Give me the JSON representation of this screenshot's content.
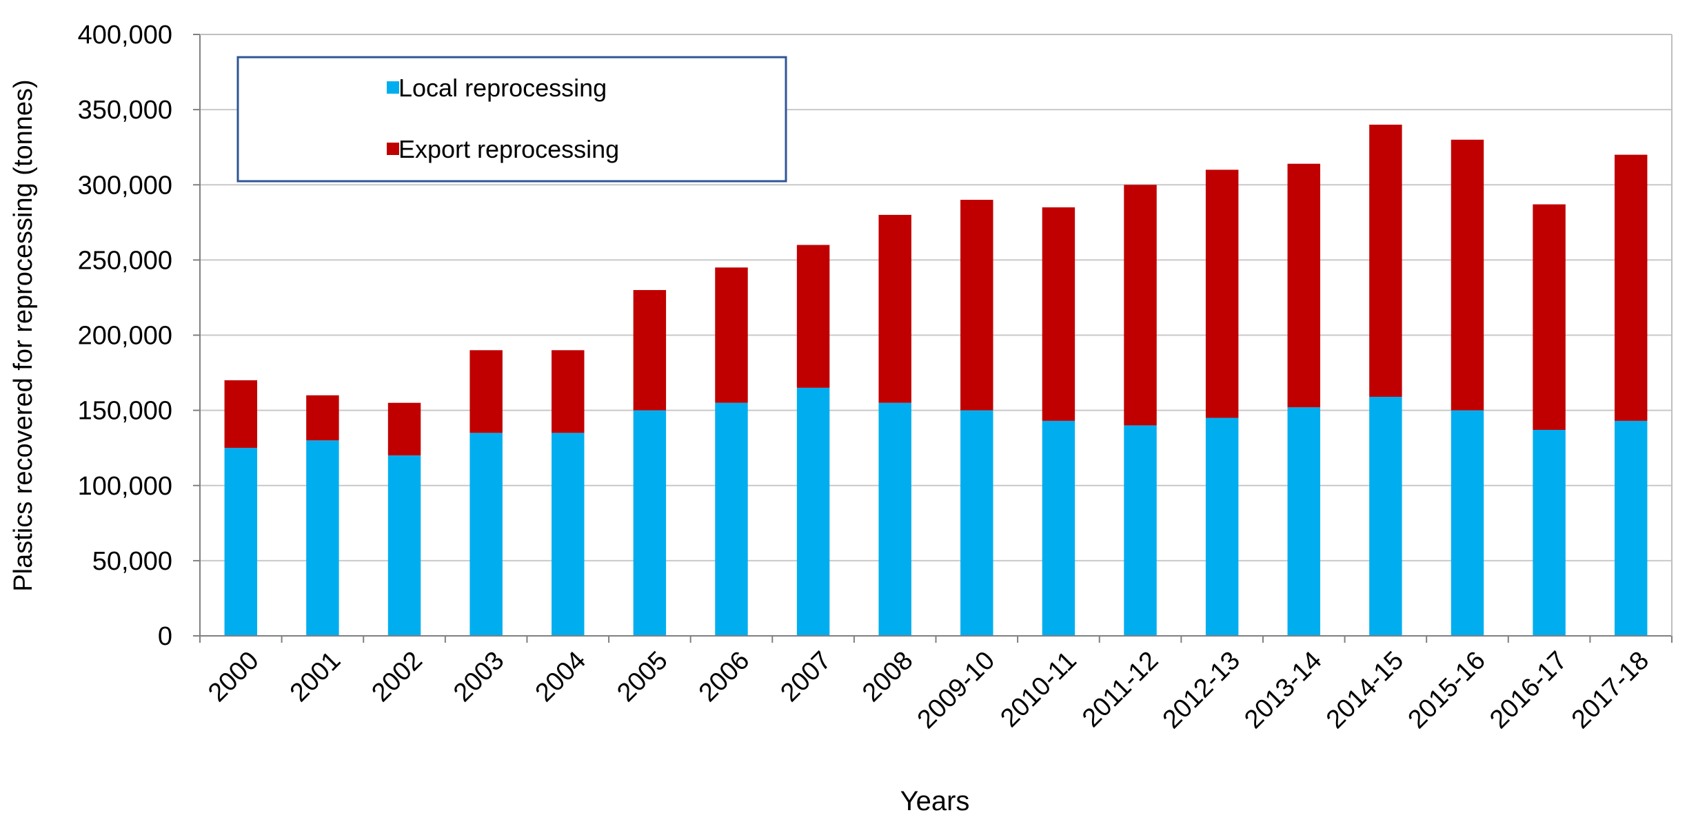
{
  "chart_data": {
    "type": "bar",
    "stacked": true,
    "title": "",
    "xlabel": "Years",
    "ylabel": "Plastics recovered for reprocessing (tonnes)",
    "ylim": [
      0,
      400000
    ],
    "yticks": [
      0,
      50000,
      100000,
      150000,
      200000,
      250000,
      300000,
      350000,
      400000
    ],
    "ytick_labels": [
      "0",
      "50,000",
      "100,000",
      "150,000",
      "200,000",
      "250,000",
      "300,000",
      "350,000",
      "400,000"
    ],
    "grid": true,
    "legend_position": "top-left",
    "categories": [
      "2000",
      "2001",
      "2002",
      "2003",
      "2004",
      "2005",
      "2006",
      "2007",
      "2008",
      "2009-10",
      "2010-11",
      "2011-12",
      "2012-13",
      "2013-14",
      "2014-15",
      "2015-16",
      "2016-17",
      "2017-18"
    ],
    "series": [
      {
        "name": "Local reprocessing",
        "color": "#00AEEF",
        "values": [
          125000,
          130000,
          120000,
          135000,
          135000,
          150000,
          155000,
          165000,
          155000,
          150000,
          143000,
          140000,
          145000,
          152000,
          159000,
          150000,
          137000,
          143000
        ]
      },
      {
        "name": "Export reprocessing",
        "color": "#C00000",
        "values": [
          45000,
          30000,
          35000,
          55000,
          55000,
          80000,
          90000,
          95000,
          125000,
          140000,
          142000,
          160000,
          165000,
          162000,
          181000,
          180000,
          150000,
          177000
        ]
      }
    ]
  }
}
